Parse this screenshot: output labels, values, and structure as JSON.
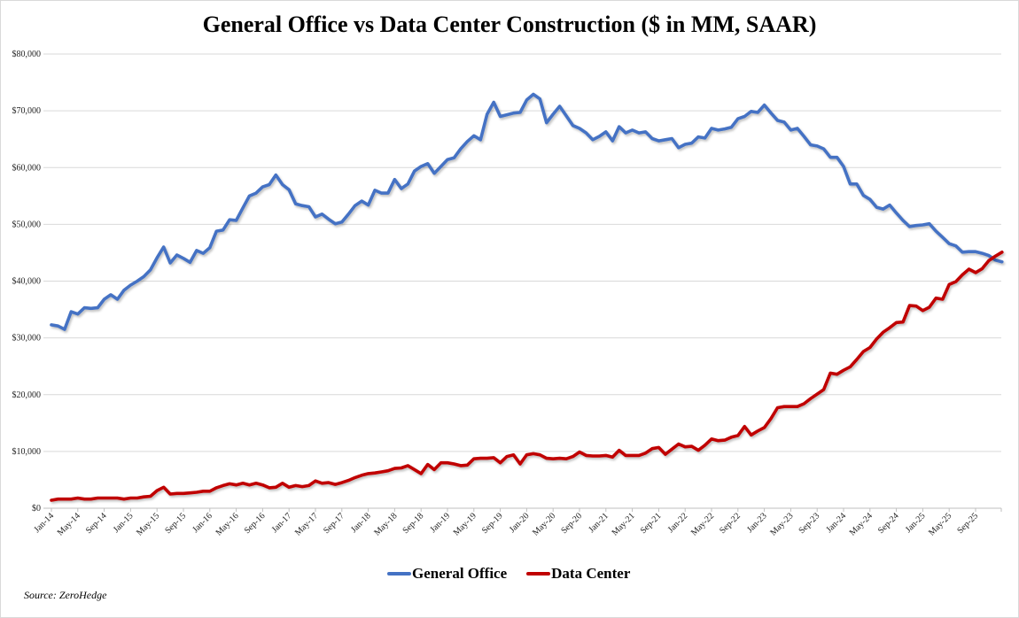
{
  "chart_data": {
    "type": "line",
    "title": "General Office vs Data Center Construction ($ in MM, SAAR)",
    "xlabel": "",
    "ylabel": "",
    "ylim": [
      0,
      80000
    ],
    "y_ticks": [
      "$0",
      "$10,000",
      "$20,000",
      "$30,000",
      "$40,000",
      "$50,000",
      "$60,000",
      "$70,000",
      "$80,000"
    ],
    "y_tick_values": [
      0,
      10000,
      20000,
      30000,
      40000,
      50000,
      60000,
      70000,
      80000
    ],
    "x_ticks": [
      "Jan-14",
      "May-14",
      "Sep-14",
      "Jan-15",
      "May-15",
      "Sep-15",
      "Jan-16",
      "May-16",
      "Sep-16",
      "Jan-17",
      "May-17",
      "Sep-17",
      "Jan-18",
      "May-18",
      "Sep-18",
      "Jan-19",
      "May-19",
      "Sep-19",
      "Jan-20",
      "May-20",
      "Sep-20",
      "Jan-21",
      "May-21",
      "Sep-21",
      "Jan-22",
      "May-22",
      "Sep-22",
      "Jan-23",
      "May-23",
      "Sep-23",
      "Jan-24",
      "May-24",
      "Sep-24",
      "Jan-25",
      "May-25",
      "Sep-25"
    ],
    "grid": true,
    "legend_position": "bottom",
    "x": [
      "Jan-14",
      "Feb-14",
      "Mar-14",
      "Apr-14",
      "May-14",
      "Jun-14",
      "Jul-14",
      "Aug-14",
      "Sep-14",
      "Oct-14",
      "Nov-14",
      "Dec-14",
      "Jan-15",
      "Feb-15",
      "Mar-15",
      "Apr-15",
      "May-15",
      "Jun-15",
      "Jul-15",
      "Aug-15",
      "Sep-15",
      "Oct-15",
      "Nov-15",
      "Dec-15",
      "Jan-16",
      "Feb-16",
      "Mar-16",
      "Apr-16",
      "May-16",
      "Jun-16",
      "Jul-16",
      "Aug-16",
      "Sep-16",
      "Oct-16",
      "Nov-16",
      "Dec-16",
      "Jan-17",
      "Feb-17",
      "Mar-17",
      "Apr-17",
      "May-17",
      "Jun-17",
      "Jul-17",
      "Aug-17",
      "Sep-17",
      "Oct-17",
      "Nov-17",
      "Dec-17",
      "Jan-18",
      "Feb-18",
      "Mar-18",
      "Apr-18",
      "May-18",
      "Jun-18",
      "Jul-18",
      "Aug-18",
      "Sep-18",
      "Oct-18",
      "Nov-18",
      "Dec-18",
      "Jan-19",
      "Feb-19",
      "Mar-19",
      "Apr-19",
      "May-19",
      "Jun-19",
      "Jul-19",
      "Aug-19",
      "Sep-19",
      "Oct-19",
      "Nov-19",
      "Dec-19",
      "Jan-20",
      "Feb-20",
      "Mar-20",
      "Apr-20",
      "May-20",
      "Jun-20",
      "Jul-20",
      "Aug-20",
      "Sep-20",
      "Oct-20",
      "Nov-20",
      "Dec-20",
      "Jan-21",
      "Feb-21",
      "Mar-21",
      "Apr-21",
      "May-21",
      "Jun-21",
      "Jul-21",
      "Aug-21",
      "Sep-21",
      "Oct-21",
      "Nov-21",
      "Dec-21",
      "Jan-22",
      "Feb-22",
      "Mar-22",
      "Apr-22",
      "May-22",
      "Jun-22",
      "Jul-22",
      "Aug-22",
      "Sep-22",
      "Oct-22",
      "Nov-22",
      "Dec-22",
      "Jan-23",
      "Feb-23",
      "Mar-23",
      "Apr-23",
      "May-23",
      "Jun-23",
      "Jul-23",
      "Aug-23",
      "Sep-23",
      "Oct-23",
      "Nov-23",
      "Dec-23",
      "Jan-24",
      "Feb-24",
      "Mar-24",
      "Apr-24",
      "May-24",
      "Jun-24",
      "Jul-24",
      "Aug-24",
      "Sep-24",
      "Oct-24",
      "Nov-24",
      "Dec-24",
      "Jan-25",
      "Feb-25",
      "Mar-25",
      "Apr-25",
      "May-25",
      "Jun-25",
      "Jul-25",
      "Aug-25",
      "Sep-25",
      "Oct-25",
      "Nov-25",
      "Dec-25",
      "Jan-26"
    ],
    "series": [
      {
        "name": "General Office",
        "color": "#4472C4",
        "values": [
          32300,
          32100,
          31500,
          34600,
          34200,
          35300,
          35200,
          35300,
          36800,
          37600,
          36800,
          38400,
          39300,
          40000,
          40800,
          42000,
          44100,
          46000,
          43200,
          44600,
          44000,
          43300,
          45400,
          44900,
          45900,
          48800,
          49000,
          50800,
          50700,
          52900,
          55000,
          55500,
          56600,
          57000,
          58700,
          57000,
          56100,
          53600,
          53300,
          53100,
          51300,
          51800,
          50900,
          50100,
          50400,
          51800,
          53300,
          54100,
          53400,
          56000,
          55500,
          55500,
          57900,
          56300,
          57100,
          59400,
          60200,
          60700,
          59000,
          60200,
          61400,
          61700,
          63300,
          64600,
          65600,
          64900,
          69400,
          71500,
          69000,
          69300,
          69600,
          69700,
          71900,
          72900,
          72100,
          67900,
          69400,
          70800,
          69100,
          67400,
          66900,
          66100,
          64900,
          65500,
          66300,
          64700,
          67200,
          66100,
          66600,
          66100,
          66300,
          65100,
          64700,
          64900,
          65100,
          63500,
          64100,
          64300,
          65400,
          65200,
          66900,
          66600,
          66800,
          67100,
          68600,
          69000,
          69900,
          69700,
          71000,
          69600,
          68300,
          68000,
          66600,
          66900,
          65500,
          64000,
          63800,
          63300,
          61800,
          61800,
          60200,
          57100,
          57100,
          55100,
          54400,
          53000,
          52700,
          53400,
          52000,
          50700,
          49600,
          49800,
          49900,
          50100,
          48800,
          47700,
          46600,
          46200,
          45100,
          45200,
          45200,
          44900,
          44500,
          43700,
          43400
        ]
      },
      {
        "name": "Data Center",
        "color": "#C00000",
        "values": [
          1400,
          1600,
          1600,
          1600,
          1800,
          1600,
          1600,
          1800,
          1800,
          1800,
          1800,
          1600,
          1800,
          1800,
          2000,
          2100,
          3100,
          3700,
          2500,
          2600,
          2600,
          2700,
          2800,
          3000,
          3000,
          3600,
          4000,
          4300,
          4100,
          4400,
          4100,
          4400,
          4100,
          3600,
          3700,
          4400,
          3700,
          4000,
          3800,
          4000,
          4800,
          4400,
          4500,
          4200,
          4500,
          4900,
          5400,
          5800,
          6100,
          6200,
          6400,
          6600,
          7000,
          7100,
          7500,
          6800,
          6100,
          7700,
          6800,
          8000,
          8000,
          7800,
          7500,
          7600,
          8700,
          8800,
          8800,
          8900,
          8000,
          9100,
          9400,
          7800,
          9400,
          9600,
          9400,
          8800,
          8700,
          8800,
          8700,
          9100,
          9900,
          9300,
          9200,
          9200,
          9300,
          9000,
          10200,
          9300,
          9300,
          9300,
          9700,
          10500,
          10700,
          9500,
          10400,
          11300,
          10800,
          10900,
          10200,
          11100,
          12200,
          11900,
          12000,
          12500,
          12800,
          14400,
          12900,
          13600,
          14200,
          15800,
          17700,
          17900,
          17900,
          17900,
          18400,
          19300,
          20100,
          20900,
          23800,
          23600,
          24300,
          24900,
          26200,
          27600,
          28300,
          29800,
          31000,
          31800,
          32700,
          32800,
          35700,
          35600,
          34800,
          35400,
          37000,
          36800,
          39400,
          39900,
          41100,
          42100,
          41500,
          42200,
          43600,
          44400,
          45100
        ]
      }
    ]
  },
  "legend": {
    "items": [
      {
        "label": "General Office"
      },
      {
        "label": "Data Center"
      }
    ]
  },
  "source": "Source: ZeroHedge"
}
